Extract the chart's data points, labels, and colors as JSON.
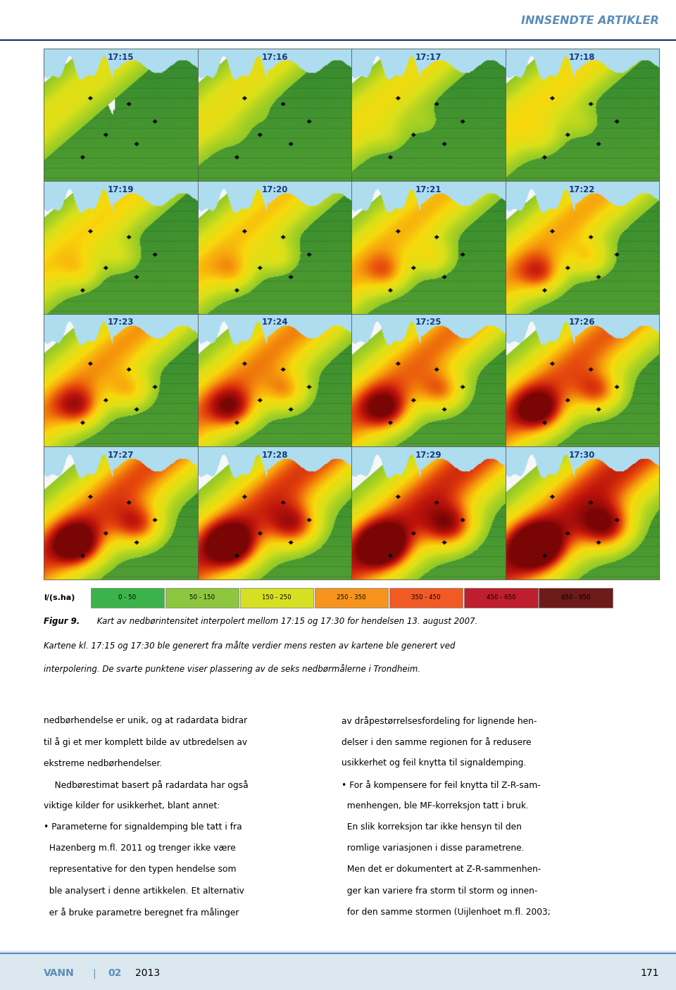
{
  "title_header": "INNSENDTE ARTIKLER",
  "header_color": "#5b8db8",
  "header_line_color": "#1a3a6b",
  "bg_color": "#ffffff",
  "timestamps": [
    "17:15",
    "17:16",
    "17:17",
    "17:18",
    "17:19",
    "17:20",
    "17:21",
    "17:22",
    "17:23",
    "17:24",
    "17:25",
    "17:26",
    "17:27",
    "17:28",
    "17:29",
    "17:30"
  ],
  "timestamp_color": "#1a3a7a",
  "legend_labels": [
    "0 - 50",
    "50 - 150",
    "150 - 250",
    "250 - 350",
    "350 - 450",
    "450 - 650",
    "650 - 950"
  ],
  "legend_colors": [
    "#3cb34a",
    "#8dc63f",
    "#d7df23",
    "#f7941d",
    "#f15a24",
    "#be1e2d",
    "#6d1a1a"
  ],
  "legend_prefix": "l/(s.ha)",
  "caption_line1_bold": "Figur 9.",
  "caption_line1_rest": " Kart av nedbørintensitet interpolert mellom 17:15 og 17:30 for hendelsen 13. august 2007.",
  "caption_line2": "Kartene kl. 17:15 og 17:30 ble generert fra målte verdier mens resten av kartene ble generert ved",
  "caption_line3": "interpolering. De svarte punktene viser plassering av de seks nedbørmålerne i Trondheim.",
  "body_col1_lines": [
    "nedbørhendelse er unik, og at radardata bidrar",
    "til å gi et mer komplett bilde av utbredelsen av",
    "ekstreme nedbørhendelser.",
    "    Nedbørestimat basert på radardata har også",
    "viktige kilder for usikkerhet, blant annet:",
    "• Parameterne for signaldemping ble tatt i fra",
    "  Hazenberg m.fl. 2011 og trenger ikke være",
    "  representative for den typen hendelse som",
    "  ble analysert i denne artikkelen. Et alternativ",
    "  er å bruke parametre beregnet fra målinger"
  ],
  "body_col2_lines": [
    "av dråpestørrelsesfordeling for lignende hen-",
    "delser i den samme regionen for å redusere",
    "usikkerhet og feil knytta til signaldemping.",
    "• For å kompensere for feil knytta til Z-R-sam-",
    "  menhengen, ble MF-korreksjon tatt i bruk.",
    "  En slik korreksjon tar ikke hensyn til den",
    "  romlige variasjonen i disse parametrene.",
    "  Men det er dokumentert at Z-R-sammenhen-",
    "  ger kan variere fra storm til storm og innen-",
    "  for den samme stormen (Uijlenhoet m.fl. 2003;"
  ],
  "footer_vann": "VANN",
  "footer_sep": "|",
  "footer_issue": "02",
  "footer_year": "2013",
  "footer_page": "171",
  "footer_color": "#5b8db8",
  "footer_bg": "#dce8f0"
}
